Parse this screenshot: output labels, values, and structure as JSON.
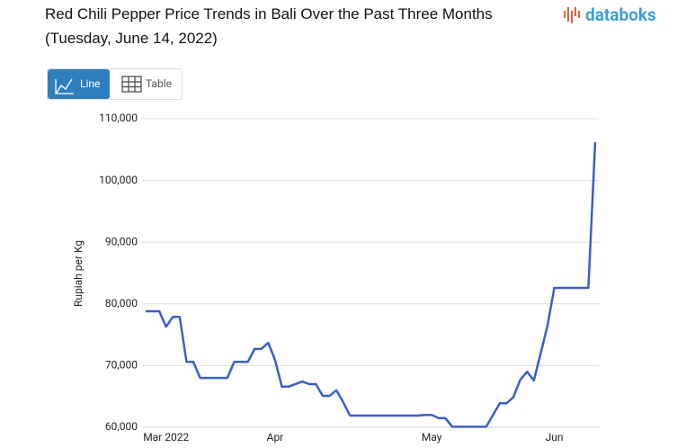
{
  "chart_data": {
    "type": "line",
    "title": "Red Chili Pepper Price Trends in Bali Over the Past Three Months (Tuesday, June 14, 2022)",
    "brand": "databoks",
    "buttons": [
      "Line",
      "Table"
    ],
    "y_label": "Rupiah per Kg",
    "categories": [
      null,
      null,
      null,
      "Mar 2022",
      null,
      null,
      null,
      null,
      null,
      null,
      null,
      null,
      null,
      null,
      null,
      null,
      null,
      null,
      null,
      "Apr",
      null,
      null,
      null,
      null,
      null,
      null,
      null,
      null,
      null,
      null,
      null,
      null,
      null,
      null,
      null,
      null,
      null,
      null,
      null,
      null,
      null,
      null,
      "May",
      null,
      null,
      null,
      null,
      null,
      null,
      null,
      null,
      null,
      null,
      null,
      null,
      null,
      null,
      null,
      null,
      null,
      "Jun",
      null,
      null,
      null,
      null,
      null,
      null
    ],
    "series": [
      {
        "name": "Rupiah per Kg",
        "color": "#3b5fc9",
        "values": [
          78800,
          78800,
          78800,
          76300,
          77900,
          77900,
          70600,
          70600,
          68000,
          68000,
          68000,
          68000,
          68000,
          70600,
          70600,
          70600,
          72700,
          72700,
          73700,
          70900,
          66600,
          66600,
          67000,
          67400,
          67000,
          67000,
          65100,
          65100,
          66000,
          64100,
          61900,
          61900,
          61900,
          61900,
          61900,
          61900,
          61900,
          61900,
          61900,
          61900,
          61900,
          62000,
          62000,
          61500,
          61500,
          60100,
          60100,
          60100,
          60100,
          60100,
          60100,
          62000,
          63900,
          63900,
          64900,
          67700,
          69000,
          67600,
          72000,
          76500,
          82600,
          82600,
          82600,
          82600,
          82600,
          82600,
          106200
        ]
      }
    ],
    "ylim": [
      60000,
      110000
    ],
    "yticks": [
      {
        "value": 60000,
        "label": "60,000"
      },
      {
        "value": 70000,
        "label": "70,000"
      },
      {
        "value": 80000,
        "label": "80,000"
      },
      {
        "value": 90000,
        "label": "90,000"
      },
      {
        "value": 100000,
        "label": "100,000"
      },
      {
        "value": 110000,
        "label": "110,000"
      }
    ],
    "grid": true
  }
}
